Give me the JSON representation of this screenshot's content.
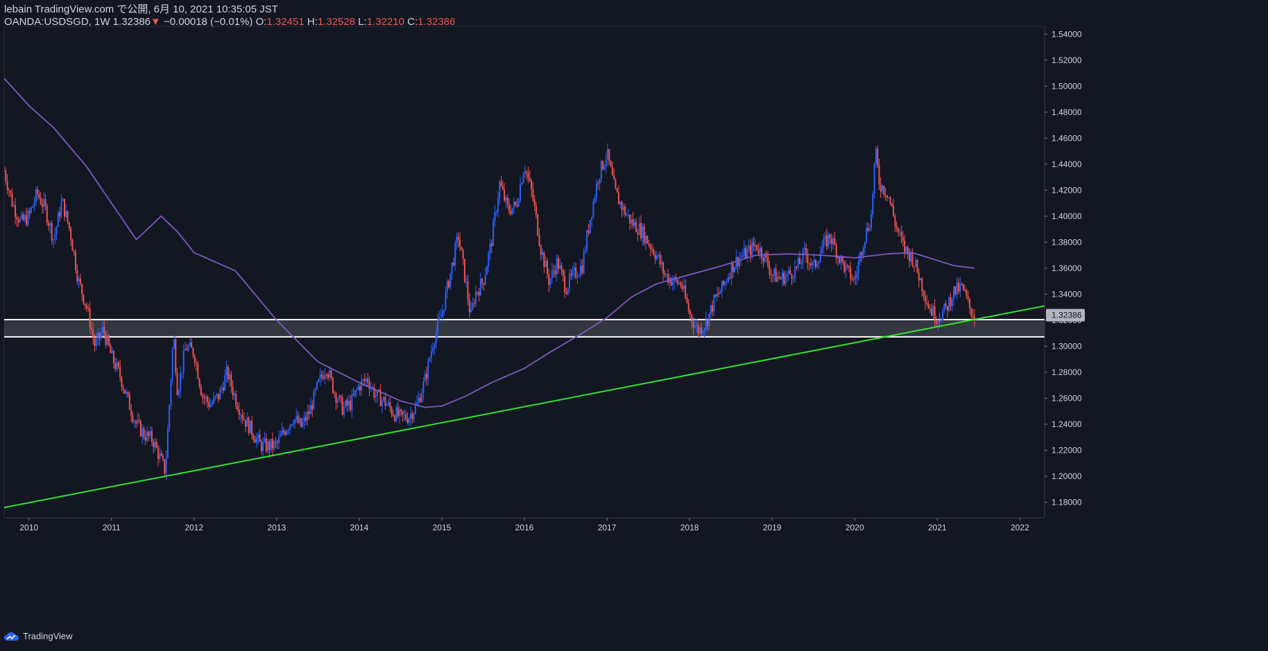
{
  "header": {
    "publish_line": "lebain TradingView.com で公開, 6月 10, 2021 10:35:05 JST",
    "symbol": "OANDA:USDSGD, 1W 1.32386",
    "change_arrow": "▼",
    "change": "−0.00018 (−0.01%)",
    "o_label": "O:",
    "o_value": "1.32451",
    "h_label": "H:",
    "h_value": "1.32528",
    "l_label": "L:",
    "l_value": "1.32210",
    "c_label": "C:",
    "c_value": "1.32386"
  },
  "footer": {
    "brand": "TradingView"
  },
  "colors": {
    "background": "#131722",
    "up": "#2962ff",
    "down": "#ef5350",
    "moving_average": "#7e57c2",
    "trendline": "#2ee62e",
    "zone_fill": "#3a3d45",
    "zone_lines": "#ffffff",
    "axis_text": "#d1d4dc",
    "price_label_bg": "#b2b5be"
  },
  "chart_data": {
    "type": "candlestick",
    "symbol": "OANDA:USDSGD",
    "interval": "1W",
    "last_price": "1.32386",
    "xlim": [
      2009.7,
      2022.3
    ],
    "ylim": [
      1.168,
      1.546
    ],
    "x_ticks": [
      "2010",
      "2011",
      "2012",
      "2013",
      "2014",
      "2015",
      "2016",
      "2017",
      "2018",
      "2019",
      "2020",
      "2021",
      "2022"
    ],
    "y_ticks": [
      "1.54000",
      "1.52000",
      "1.50000",
      "1.48000",
      "1.46000",
      "1.44000",
      "1.42000",
      "1.40000",
      "1.38000",
      "1.36000",
      "1.34000",
      "1.32000",
      "1.30000",
      "1.28000",
      "1.26000",
      "1.24000",
      "1.22000",
      "1.20000",
      "1.18000"
    ],
    "price_path": [
      [
        2009.7,
        1.435
      ],
      [
        2009.8,
        1.41
      ],
      [
        2009.9,
        1.395
      ],
      [
        2010.0,
        1.4
      ],
      [
        2010.1,
        1.418
      ],
      [
        2010.2,
        1.405
      ],
      [
        2010.3,
        1.382
      ],
      [
        2010.4,
        1.412
      ],
      [
        2010.5,
        1.388
      ],
      [
        2010.6,
        1.35
      ],
      [
        2010.7,
        1.33
      ],
      [
        2010.8,
        1.3
      ],
      [
        2010.9,
        1.313
      ],
      [
        2011.0,
        1.292
      ],
      [
        2011.1,
        1.278
      ],
      [
        2011.2,
        1.258
      ],
      [
        2011.3,
        1.24
      ],
      [
        2011.4,
        1.232
      ],
      [
        2011.5,
        1.228
      ],
      [
        2011.6,
        1.212
      ],
      [
        2011.65,
        1.204
      ],
      [
        2011.7,
        1.255
      ],
      [
        2011.75,
        1.31
      ],
      [
        2011.8,
        1.265
      ],
      [
        2011.9,
        1.3
      ],
      [
        2012.0,
        1.295
      ],
      [
        2012.1,
        1.262
      ],
      [
        2012.2,
        1.255
      ],
      [
        2012.3,
        1.262
      ],
      [
        2012.4,
        1.28
      ],
      [
        2012.5,
        1.26
      ],
      [
        2012.6,
        1.245
      ],
      [
        2012.7,
        1.235
      ],
      [
        2012.8,
        1.224
      ],
      [
        2012.9,
        1.223
      ],
      [
        2013.0,
        1.224
      ],
      [
        2013.1,
        1.236
      ],
      [
        2013.2,
        1.245
      ],
      [
        2013.3,
        1.238
      ],
      [
        2013.4,
        1.25
      ],
      [
        2013.5,
        1.27
      ],
      [
        2013.6,
        1.285
      ],
      [
        2013.7,
        1.265
      ],
      [
        2013.8,
        1.252
      ],
      [
        2013.9,
        1.256
      ],
      [
        2014.0,
        1.27
      ],
      [
        2014.1,
        1.275
      ],
      [
        2014.2,
        1.262
      ],
      [
        2014.3,
        1.258
      ],
      [
        2014.4,
        1.25
      ],
      [
        2014.5,
        1.245
      ],
      [
        2014.6,
        1.246
      ],
      [
        2014.7,
        1.255
      ],
      [
        2014.8,
        1.275
      ],
      [
        2014.9,
        1.305
      ],
      [
        2015.0,
        1.325
      ],
      [
        2015.1,
        1.355
      ],
      [
        2015.2,
        1.385
      ],
      [
        2015.3,
        1.345
      ],
      [
        2015.35,
        1.322
      ],
      [
        2015.4,
        1.34
      ],
      [
        2015.5,
        1.35
      ],
      [
        2015.6,
        1.38
      ],
      [
        2015.7,
        1.425
      ],
      [
        2015.8,
        1.405
      ],
      [
        2015.9,
        1.408
      ],
      [
        2016.0,
        1.44
      ],
      [
        2016.1,
        1.415
      ],
      [
        2016.2,
        1.375
      ],
      [
        2016.3,
        1.35
      ],
      [
        2016.4,
        1.365
      ],
      [
        2016.5,
        1.345
      ],
      [
        2016.6,
        1.355
      ],
      [
        2016.7,
        1.362
      ],
      [
        2016.8,
        1.4
      ],
      [
        2016.9,
        1.432
      ],
      [
        2017.0,
        1.448
      ],
      [
        2017.1,
        1.418
      ],
      [
        2017.2,
        1.405
      ],
      [
        2017.3,
        1.395
      ],
      [
        2017.4,
        1.39
      ],
      [
        2017.5,
        1.38
      ],
      [
        2017.6,
        1.37
      ],
      [
        2017.7,
        1.355
      ],
      [
        2017.8,
        1.35
      ],
      [
        2017.9,
        1.348
      ],
      [
        2018.0,
        1.325
      ],
      [
        2018.1,
        1.312
      ],
      [
        2018.2,
        1.318
      ],
      [
        2018.3,
        1.335
      ],
      [
        2018.4,
        1.345
      ],
      [
        2018.5,
        1.36
      ],
      [
        2018.6,
        1.368
      ],
      [
        2018.7,
        1.372
      ],
      [
        2018.8,
        1.378
      ],
      [
        2018.9,
        1.37
      ],
      [
        2019.0,
        1.355
      ],
      [
        2019.1,
        1.352
      ],
      [
        2019.2,
        1.355
      ],
      [
        2019.3,
        1.36
      ],
      [
        2019.4,
        1.372
      ],
      [
        2019.5,
        1.36
      ],
      [
        2019.6,
        1.375
      ],
      [
        2019.7,
        1.385
      ],
      [
        2019.8,
        1.37
      ],
      [
        2019.9,
        1.358
      ],
      [
        2020.0,
        1.35
      ],
      [
        2020.1,
        1.38
      ],
      [
        2020.2,
        1.4
      ],
      [
        2020.25,
        1.45
      ],
      [
        2020.3,
        1.425
      ],
      [
        2020.4,
        1.418
      ],
      [
        2020.5,
        1.392
      ],
      [
        2020.6,
        1.375
      ],
      [
        2020.7,
        1.368
      ],
      [
        2020.8,
        1.35
      ],
      [
        2020.9,
        1.33
      ],
      [
        2021.0,
        1.322
      ],
      [
        2021.1,
        1.328
      ],
      [
        2021.2,
        1.342
      ],
      [
        2021.3,
        1.345
      ],
      [
        2021.4,
        1.328
      ],
      [
        2021.45,
        1.324
      ]
    ],
    "moving_average": [
      [
        2009.7,
        1.506
      ],
      [
        2010.0,
        1.485
      ],
      [
        2010.3,
        1.468
      ],
      [
        2010.7,
        1.438
      ],
      [
        2011.0,
        1.41
      ],
      [
        2011.3,
        1.382
      ],
      [
        2011.6,
        1.4
      ],
      [
        2011.8,
        1.388
      ],
      [
        2012.0,
        1.372
      ],
      [
        2012.5,
        1.358
      ],
      [
        2013.0,
        1.32
      ],
      [
        2013.5,
        1.288
      ],
      [
        2014.0,
        1.272
      ],
      [
        2014.5,
        1.258
      ],
      [
        2014.8,
        1.253
      ],
      [
        2015.0,
        1.254
      ],
      [
        2015.3,
        1.262
      ],
      [
        2015.6,
        1.272
      ],
      [
        2016.0,
        1.283
      ],
      [
        2016.3,
        1.295
      ],
      [
        2016.7,
        1.31
      ],
      [
        2017.0,
        1.322
      ],
      [
        2017.3,
        1.338
      ],
      [
        2017.6,
        1.348
      ],
      [
        2018.0,
        1.355
      ],
      [
        2018.4,
        1.362
      ],
      [
        2018.8,
        1.37
      ],
      [
        2019.2,
        1.371
      ],
      [
        2019.6,
        1.37
      ],
      [
        2020.0,
        1.368
      ],
      [
        2020.4,
        1.371
      ],
      [
        2020.7,
        1.372
      ],
      [
        2020.9,
        1.368
      ],
      [
        2021.2,
        1.362
      ],
      [
        2021.45,
        1.36
      ]
    ],
    "trendline": {
      "start": [
        2009.7,
        1.176
      ],
      "end": [
        2022.3,
        1.331
      ]
    },
    "support_zone": {
      "top": 1.3205,
      "bottom": 1.3072
    }
  }
}
